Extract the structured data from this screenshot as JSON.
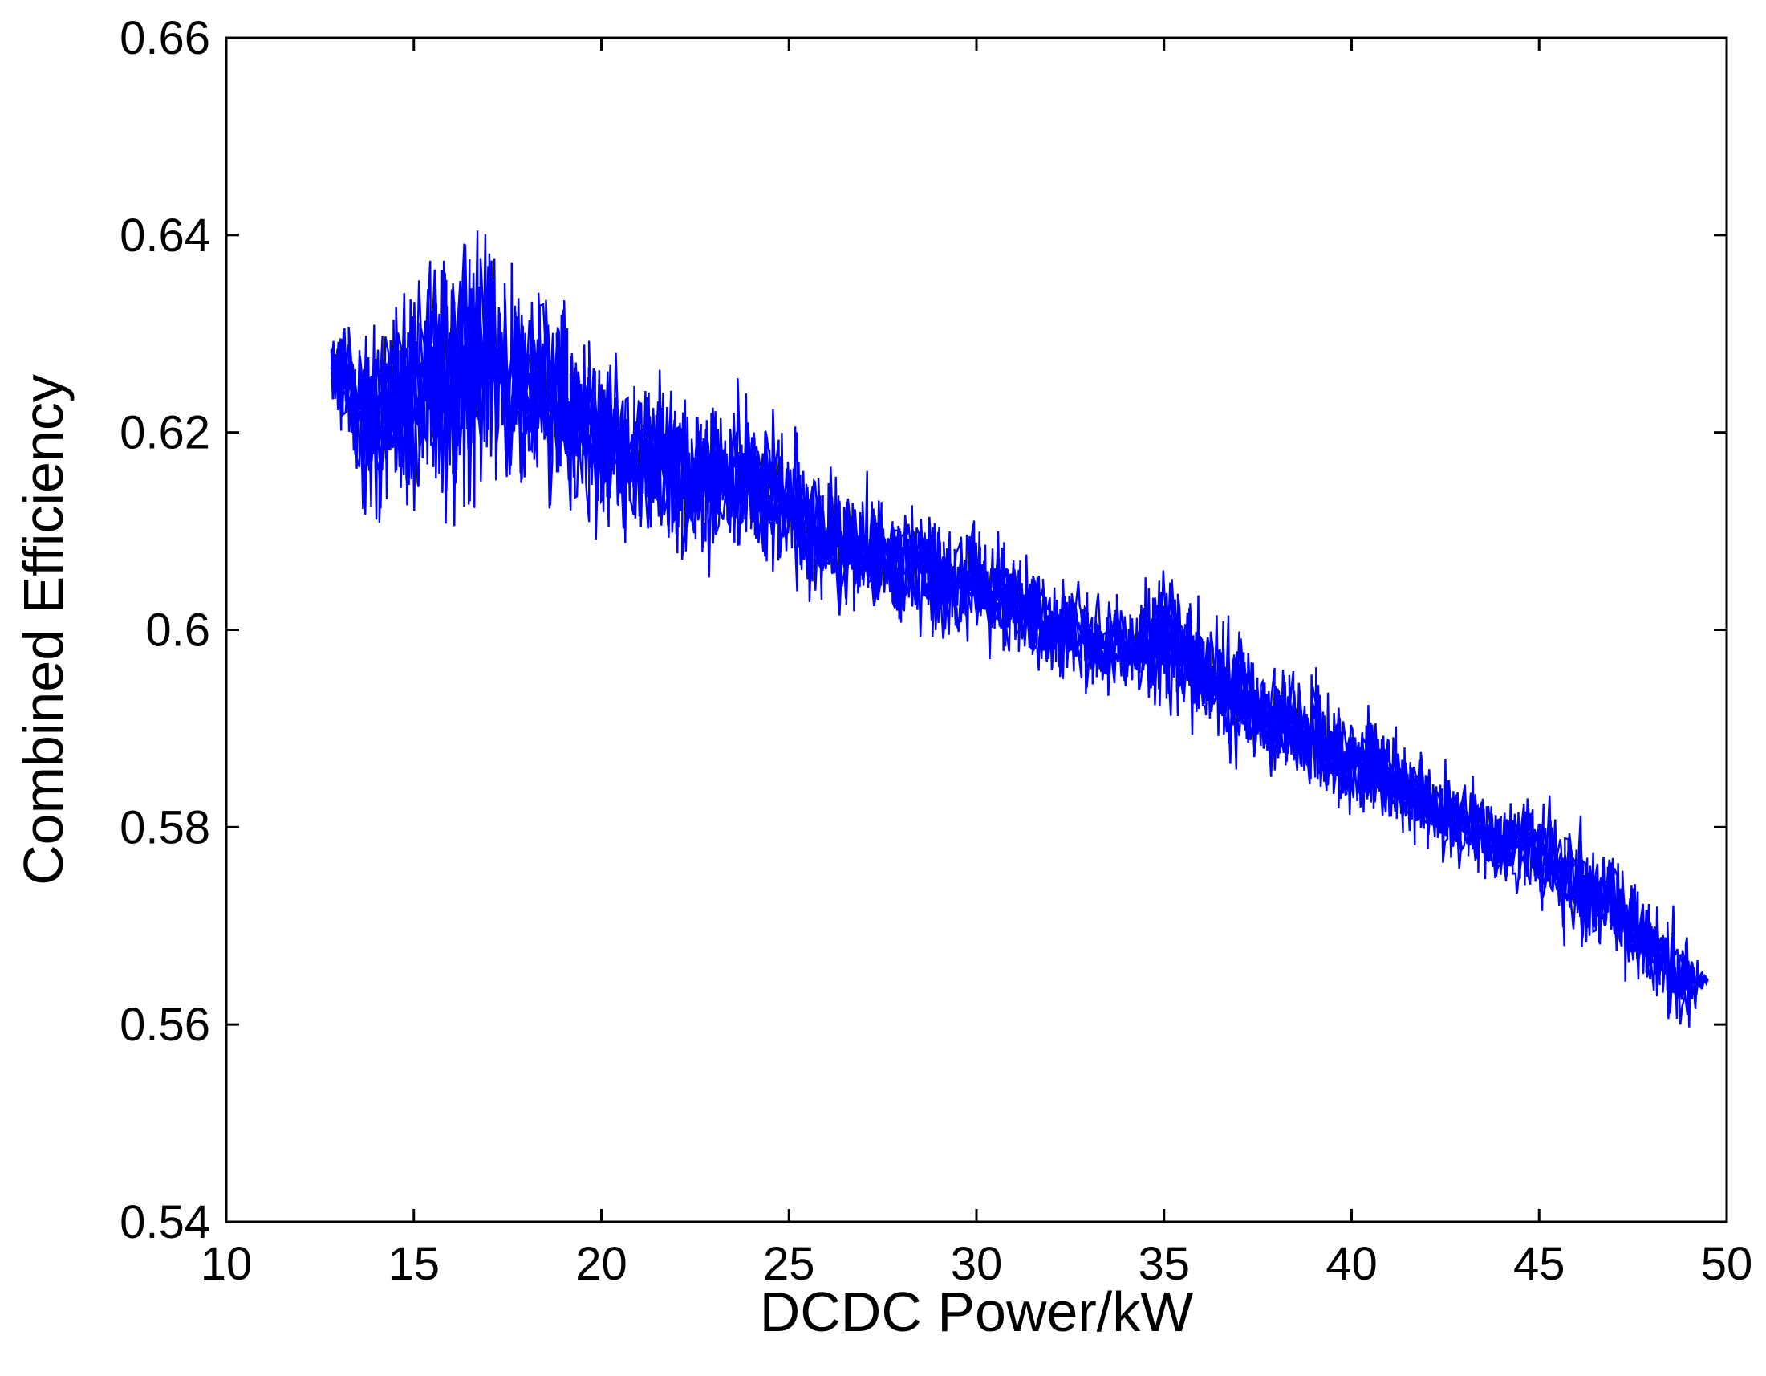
{
  "chart_data": {
    "type": "line",
    "title": "",
    "xlabel": "DCDC Power/kW",
    "ylabel": "Combined Efficiency",
    "xlim": [
      10,
      50
    ],
    "ylim": [
      0.54,
      0.66
    ],
    "x_ticks": [
      10,
      15,
      20,
      25,
      30,
      35,
      40,
      45,
      50
    ],
    "x_tick_labels": [
      "10",
      "15",
      "20",
      "25",
      "30",
      "35",
      "40",
      "45",
      "50"
    ],
    "y_ticks": [
      0.54,
      0.56,
      0.58,
      0.6,
      0.62,
      0.64,
      0.66
    ],
    "y_tick_labels": [
      "0.54",
      "0.56",
      "0.58",
      "0.6",
      "0.62",
      "0.64",
      "0.66"
    ],
    "grid": false,
    "legend": "none",
    "series": [
      {
        "color": "#0000ff",
        "style": "dense noisy line trace",
        "envelope_x": [
          12.8,
          14,
          15,
          16,
          16.5,
          17,
          18,
          19,
          20,
          21,
          22,
          23,
          24,
          25,
          26,
          27,
          28,
          29,
          30,
          31,
          32,
          33,
          34,
          35,
          36,
          37,
          38,
          39,
          40,
          41,
          42,
          43,
          44,
          45,
          46,
          47,
          48,
          48.8,
          49.5
        ],
        "envelope_upper": [
          0.636,
          0.636,
          0.645,
          0.649,
          0.652,
          0.65,
          0.642,
          0.641,
          0.632,
          0.632,
          0.63,
          0.628,
          0.627,
          0.624,
          0.62,
          0.618,
          0.617,
          0.615,
          0.614,
          0.612,
          0.609,
          0.607,
          0.606,
          0.61,
          0.606,
          0.603,
          0.6,
          0.598,
          0.595,
          0.593,
          0.589,
          0.587,
          0.586,
          0.586,
          0.583,
          0.58,
          0.576,
          0.572,
          0.565
        ],
        "envelope_lower": [
          0.616,
          0.606,
          0.605,
          0.603,
          0.6,
          0.604,
          0.606,
          0.607,
          0.605,
          0.604,
          0.602,
          0.602,
          0.602,
          0.601,
          0.598,
          0.598,
          0.596,
          0.595,
          0.595,
          0.594,
          0.592,
          0.591,
          0.59,
          0.588,
          0.586,
          0.583,
          0.582,
          0.58,
          0.578,
          0.577,
          0.575,
          0.574,
          0.571,
          0.569,
          0.566,
          0.564,
          0.56,
          0.557,
          0.564
        ]
      }
    ]
  }
}
